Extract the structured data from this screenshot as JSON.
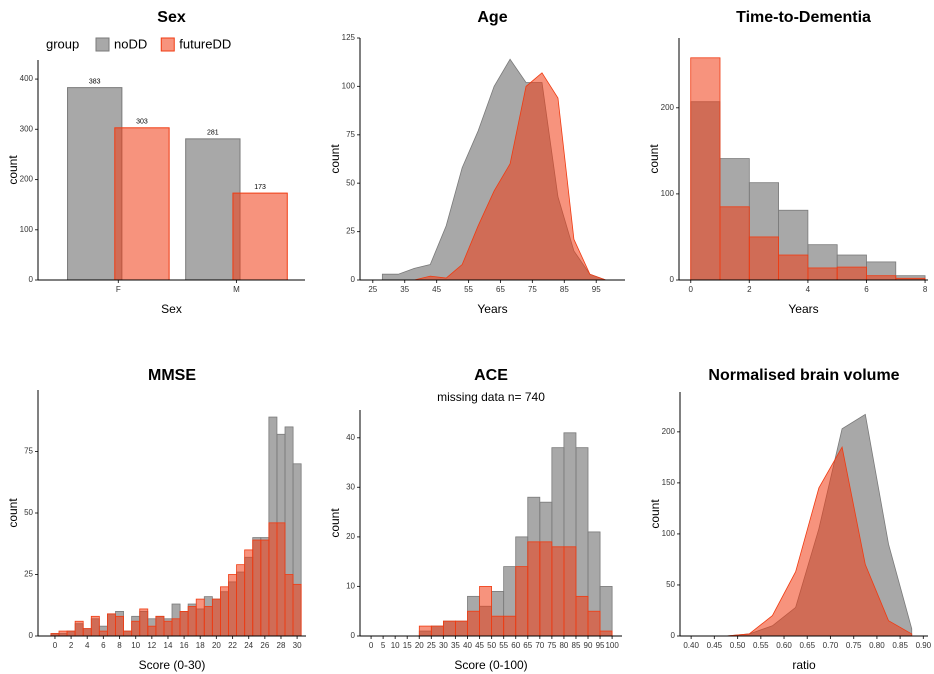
{
  "chart_data": [
    {
      "type": "bar",
      "title": "Sex",
      "xlabel": "Sex",
      "ylabel": "count",
      "legend_title": "group",
      "legend": "top-left",
      "categories": [
        "F",
        "M"
      ],
      "series": [
        {
          "name": "noDD",
          "color": "#7a7a7a",
          "values": [
            383,
            281
          ]
        },
        {
          "name": "futureDD",
          "color": "#f03b12",
          "values": [
            303,
            173
          ]
        }
      ],
      "ylim": [
        0,
        438
      ],
      "yticks": [
        0,
        100,
        200,
        300,
        400
      ]
    },
    {
      "type": "area",
      "title": "Age",
      "xlabel": "Years",
      "ylabel": "count",
      "x": [
        28,
        33,
        38,
        43,
        48,
        53,
        58,
        63,
        68,
        73,
        78,
        83,
        88,
        93,
        98
      ],
      "series": [
        {
          "name": "noDD",
          "color": "#7a7a7a",
          "values": [
            3,
            3,
            6,
            8,
            28,
            58,
            77,
            100,
            114,
            102,
            102,
            43,
            15,
            3,
            0
          ]
        },
        {
          "name": "futureDD",
          "color": "#f03b12",
          "values": [
            null,
            null,
            0,
            2,
            1,
            8,
            28,
            46,
            60,
            100,
            107,
            94,
            21,
            3,
            0
          ]
        }
      ],
      "xlim": [
        21,
        104
      ],
      "ylim": [
        0,
        125
      ],
      "xticks": [
        25,
        35,
        45,
        55,
        65,
        75,
        85,
        95
      ],
      "yticks": [
        0,
        25,
        50,
        75,
        100,
        125
      ]
    },
    {
      "type": "histogram",
      "title": "Time-to-Dementia",
      "xlabel": "Years",
      "ylabel": "count",
      "bins": [
        0,
        1,
        2,
        3,
        4,
        5,
        6,
        7,
        8
      ],
      "series": [
        {
          "name": "noDD",
          "color": "#7a7a7a",
          "values": [
            207,
            141,
            113,
            81,
            41,
            29,
            21,
            5
          ]
        },
        {
          "name": "futureDD",
          "color": "#f03b12",
          "values": [
            258,
            85,
            50,
            29,
            14,
            15,
            5,
            2
          ]
        }
      ],
      "xlim": [
        -0.4,
        8.1
      ],
      "ylim": [
        0,
        281
      ],
      "xticks": [
        0,
        2,
        4,
        6,
        8
      ],
      "yticks": [
        0,
        100,
        200
      ]
    },
    {
      "type": "histogram",
      "title": "MMSE",
      "xlabel": "Score (0-30)",
      "ylabel": "count",
      "bins": [
        -0.5,
        0.5,
        1.5,
        2.5,
        3.5,
        4.5,
        5.5,
        6.5,
        7.5,
        8.5,
        9.5,
        10.5,
        11.5,
        12.5,
        13.5,
        14.5,
        15.5,
        16.5,
        17.5,
        18.5,
        19.5,
        20.5,
        21.5,
        22.5,
        23.5,
        24.5,
        25.5,
        26.5,
        27.5,
        28.5,
        29.5,
        30.5
      ],
      "series": [
        {
          "name": "noDD",
          "color": "#7a7a7a",
          "values": [
            1,
            1,
            2,
            5,
            3,
            7,
            4,
            9,
            10,
            2,
            8,
            10,
            7,
            8,
            7,
            13,
            10,
            13,
            11,
            16,
            15,
            18,
            22,
            26,
            32,
            40,
            40,
            89,
            82,
            85,
            70
          ]
        },
        {
          "name": "futureDD",
          "color": "#f03b12",
          "values": [
            1,
            2,
            2,
            6,
            3,
            8,
            2,
            9,
            8,
            2,
            6,
            11,
            4,
            8,
            6,
            7,
            10,
            12,
            15,
            12,
            15,
            20,
            25,
            29,
            35,
            39,
            39,
            46,
            46,
            25,
            21
          ]
        }
      ],
      "xlim": [
        -2.1,
        31.1
      ],
      "ylim": [
        0,
        100
      ],
      "xticks": [
        0,
        2,
        4,
        6,
        8,
        10,
        12,
        14,
        16,
        18,
        20,
        22,
        24,
        26,
        28,
        30
      ],
      "yticks": [
        0,
        25,
        50,
        75
      ]
    },
    {
      "type": "histogram",
      "title": "ACE",
      "subtitle": "missing data n= 740",
      "xlabel": "Score (0-100)",
      "ylabel": "count",
      "bins": [
        20,
        25,
        30,
        35,
        40,
        45,
        50,
        55,
        60,
        65,
        70,
        75,
        80,
        85,
        90,
        95,
        100
      ],
      "series": [
        {
          "name": "noDD",
          "color": "#7a7a7a",
          "values": [
            1,
            2,
            3,
            3,
            8,
            6,
            9,
            14,
            20,
            28,
            27,
            38,
            41,
            38,
            21,
            10
          ]
        },
        {
          "name": "futureDD",
          "color": "#f03b12",
          "values": [
            2,
            2,
            3,
            3,
            5,
            10,
            4,
            4,
            14,
            19,
            19,
            18,
            18,
            8,
            5,
            1
          ]
        }
      ],
      "xlim": [
        -4.6,
        104.1
      ],
      "ylim": [
        0,
        45.6
      ],
      "xticks": [
        0,
        5,
        10,
        15,
        20,
        25,
        30,
        35,
        40,
        45,
        50,
        55,
        60,
        65,
        70,
        75,
        80,
        85,
        90,
        95,
        100
      ],
      "yticks": [
        0,
        10,
        20,
        30,
        40
      ]
    },
    {
      "type": "area",
      "title": "Normalised brain volume",
      "xlabel": "ratio",
      "ylabel": "count",
      "x": [
        0.475,
        0.525,
        0.575,
        0.625,
        0.675,
        0.725,
        0.775,
        0.825,
        0.875
      ],
      "series": [
        {
          "name": "noDD",
          "color": "#7a7a7a",
          "values": [
            0,
            2,
            10,
            28,
            105,
            203,
            217,
            90,
            7
          ]
        },
        {
          "name": "futureDD",
          "color": "#f03b12",
          "values": [
            0,
            2,
            20,
            63,
            145,
            185,
            70,
            15,
            2
          ]
        }
      ],
      "xlim": [
        0.376,
        0.91
      ],
      "ylim": [
        0,
        239
      ],
      "xticks": [
        {
          "value": 0.4,
          "label": "0.40"
        },
        0.45,
        {
          "value": 0.5,
          "label": "0.50"
        },
        0.55,
        {
          "value": 0.6,
          "label": "0.60"
        },
        0.65,
        {
          "value": 0.7,
          "label": "0.70"
        },
        0.75,
        {
          "value": 0.8,
          "label": "0.80"
        },
        0.85,
        {
          "value": 0.9,
          "label": "0.90"
        }
      ],
      "yticks": [
        0,
        50,
        100,
        150,
        200
      ]
    }
  ]
}
